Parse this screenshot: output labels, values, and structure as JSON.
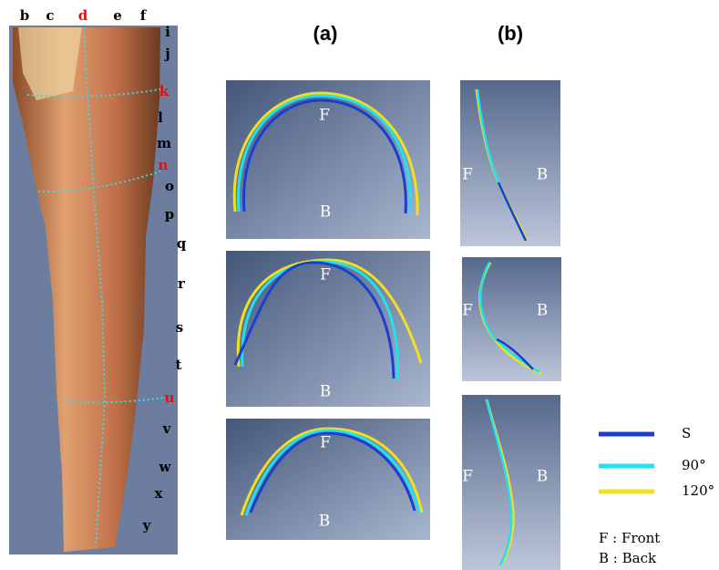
{
  "leg": {
    "top_labels": [
      {
        "text": "b",
        "color": "#000000"
      },
      {
        "text": "c",
        "color": "#000000"
      },
      {
        "text": "d",
        "color": "#e01010"
      },
      {
        "text": "e",
        "color": "#000000"
      },
      {
        "text": "f",
        "color": "#000000"
      }
    ],
    "side_labels": [
      {
        "text": "i",
        "color": "#000000"
      },
      {
        "text": "j",
        "color": "#000000"
      },
      {
        "text": "k",
        "color": "#e01010"
      },
      {
        "text": "l",
        "color": "#000000"
      },
      {
        "text": "m",
        "color": "#000000"
      },
      {
        "text": "n",
        "color": "#e01010"
      },
      {
        "text": "o",
        "color": "#000000"
      },
      {
        "text": "p",
        "color": "#000000"
      },
      {
        "text": "q",
        "color": "#000000"
      },
      {
        "text": "r",
        "color": "#000000"
      },
      {
        "text": "s",
        "color": "#000000"
      },
      {
        "text": "t",
        "color": "#000000"
      },
      {
        "text": "u",
        "color": "#e01010"
      },
      {
        "text": "v",
        "color": "#000000"
      },
      {
        "text": "w",
        "color": "#000000"
      },
      {
        "text": "x",
        "color": "#000000"
      },
      {
        "text": "y",
        "color": "#000000"
      }
    ]
  },
  "panel_a": {
    "title": "(a)",
    "panels": [
      {
        "front": "F",
        "back": "B"
      },
      {
        "front": "F",
        "back": "B"
      },
      {
        "front": "F",
        "back": "B"
      }
    ]
  },
  "panel_b": {
    "title": "(b)",
    "panels": [
      {
        "front": "F",
        "back": "B"
      },
      {
        "front": "F",
        "back": "B"
      },
      {
        "front": "F",
        "back": "B"
      }
    ]
  },
  "legend": {
    "items": [
      {
        "name": "S",
        "color": "#1a3fd0"
      },
      {
        "name": "90°",
        "color": "#22e0f0"
      },
      {
        "name": "120°",
        "color": "#f0e020"
      }
    ],
    "notes": [
      "F : Front",
      "B : Back"
    ]
  }
}
